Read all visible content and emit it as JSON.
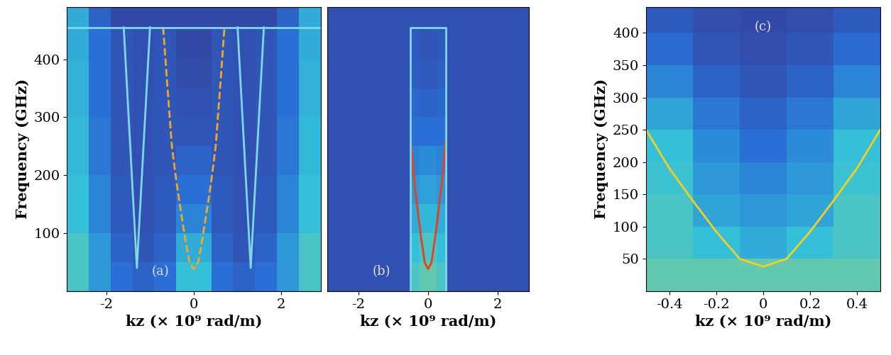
{
  "chart_data": [
    {
      "type": "heatmap",
      "xlabel": "kz (× 10⁹ rad/m)",
      "ylabel": "Frequency (GHz)",
      "annotations": [
        "(a)"
      ],
      "xlim": [
        -2.9,
        2.9
      ],
      "xticks": [
        -2,
        0,
        2
      ],
      "ylim": [
        0,
        490
      ],
      "yticks": [
        100,
        200,
        300,
        400
      ],
      "color_range": [
        0,
        1
      ],
      "x_edges": [
        -2.9,
        -2.4,
        -1.9,
        -1.4,
        -0.9,
        -0.4,
        0,
        0.4,
        0.9,
        1.4,
        1.9,
        2.4,
        2.9
      ],
      "y_edges": [
        0,
        50,
        100,
        150,
        200,
        250,
        300,
        350,
        400,
        455,
        490
      ],
      "cells": [
        [
          0.45,
          0.3,
          0.2,
          0.15,
          0.2,
          0.4,
          0.4,
          0.2,
          0.15,
          0.2,
          0.3,
          0.45
        ],
        [
          0.45,
          0.3,
          0.15,
          0.1,
          0.15,
          0.35,
          0.35,
          0.15,
          0.1,
          0.15,
          0.3,
          0.45
        ],
        [
          0.4,
          0.25,
          0.12,
          0.08,
          0.12,
          0.25,
          0.25,
          0.12,
          0.08,
          0.12,
          0.25,
          0.4
        ],
        [
          0.4,
          0.25,
          0.12,
          0.08,
          0.12,
          0.2,
          0.2,
          0.12,
          0.08,
          0.12,
          0.25,
          0.4
        ],
        [
          0.38,
          0.22,
          0.1,
          0.08,
          0.1,
          0.15,
          0.15,
          0.1,
          0.08,
          0.1,
          0.22,
          0.38
        ],
        [
          0.38,
          0.22,
          0.1,
          0.08,
          0.1,
          0.1,
          0.1,
          0.1,
          0.08,
          0.1,
          0.22,
          0.38
        ],
        [
          0.36,
          0.2,
          0.1,
          0.08,
          0.1,
          0.08,
          0.08,
          0.1,
          0.08,
          0.1,
          0.2,
          0.36
        ],
        [
          0.36,
          0.2,
          0.1,
          0.08,
          0.1,
          0.06,
          0.06,
          0.1,
          0.08,
          0.1,
          0.2,
          0.36
        ],
        [
          0.35,
          0.2,
          0.1,
          0.08,
          0.1,
          0.05,
          0.05,
          0.1,
          0.08,
          0.1,
          0.2,
          0.35
        ],
        [
          0.35,
          0.15,
          0.05,
          0.05,
          0.05,
          0.05,
          0.05,
          0.05,
          0.05,
          0.05,
          0.15,
          0.35
        ]
      ],
      "series": [
        {
          "x": [
            -0.7,
            -0.6,
            -0.5,
            -0.4,
            -0.3,
            -0.2,
            -0.1,
            0,
            0.1,
            0.2,
            0.3,
            0.4,
            0.5,
            0.6,
            0.7
          ],
          "values": [
            455,
            350,
            250,
            190,
            140,
            92,
            50,
            38,
            50,
            92,
            140,
            190,
            250,
            350,
            455
          ],
          "color": "#f5a623",
          "line_style": "dashed"
        },
        {
          "x": [
            -2.9,
            2.9
          ],
          "values": [
            455,
            455
          ],
          "color": "#7fd8e8",
          "line_style": "solid"
        },
        {
          "x": [
            1.0,
            1.3,
            1.6
          ],
          "values": [
            455,
            40,
            455
          ],
          "color": "#7fd8e8",
          "line_style": "solid"
        },
        {
          "x": [
            -1.0,
            -1.3,
            -1.6
          ],
          "values": [
            455,
            40,
            455
          ],
          "color": "#7fd8e8",
          "line_style": "solid"
        }
      ]
    },
    {
      "type": "heatmap",
      "xlabel": "kz (× 10⁹ rad/m)",
      "annotations": [
        "(b)"
      ],
      "tick_labels": "x",
      "xlim": [
        -2.9,
        2.9
      ],
      "xticks": [
        -2,
        0,
        2
      ],
      "ylim": [
        0,
        490
      ],
      "color_range": [
        0,
        1
      ],
      "x_edges": [
        -2.9,
        -0.5,
        -0.25,
        0,
        0.25,
        0.5,
        2.9
      ],
      "y_edges": [
        0,
        50,
        100,
        150,
        200,
        250,
        300,
        350,
        400,
        455,
        490
      ],
      "cells": [
        [
          0.08,
          0.45,
          0.5,
          0.5,
          0.45,
          0.08
        ],
        [
          0.08,
          0.4,
          0.45,
          0.45,
          0.4,
          0.08
        ],
        [
          0.08,
          0.35,
          0.38,
          0.38,
          0.35,
          0.08
        ],
        [
          0.08,
          0.3,
          0.32,
          0.32,
          0.3,
          0.08
        ],
        [
          0.08,
          0.25,
          0.27,
          0.27,
          0.25,
          0.08
        ],
        [
          0.08,
          0.2,
          0.2,
          0.2,
          0.2,
          0.08
        ],
        [
          0.08,
          0.17,
          0.15,
          0.15,
          0.17,
          0.08
        ],
        [
          0.08,
          0.14,
          0.12,
          0.12,
          0.14,
          0.08
        ],
        [
          0.08,
          0.12,
          0.1,
          0.1,
          0.12,
          0.08
        ],
        [
          0.08,
          0.08,
          0.08,
          0.08,
          0.08,
          0.08
        ]
      ],
      "series": [
        {
          "x": [
            -0.5,
            -0.4,
            -0.3,
            -0.2,
            -0.1,
            0,
            0.1,
            0.2,
            0.3,
            0.4,
            0.5
          ],
          "values": [
            260,
            190,
            140,
            92,
            50,
            38,
            50,
            92,
            140,
            190,
            260
          ],
          "color": "#e8401c",
          "line_style": "solid"
        },
        {
          "x": [
            -0.5,
            -0.5,
            0.5,
            0.5
          ],
          "values": [
            0,
            455,
            455,
            0
          ],
          "color": "#7fd8e8",
          "line_style": "solid"
        }
      ]
    },
    {
      "type": "heatmap",
      "xlabel": "kz (× 10⁹ rad/m)",
      "ylabel": "Frequency (GHz)",
      "annotations": [
        "(c)"
      ],
      "xlim": [
        -0.5,
        0.5
      ],
      "xticks": [
        -0.4,
        -0.2,
        0,
        0.2,
        0.4
      ],
      "ylim": [
        0,
        440
      ],
      "yticks": [
        50,
        100,
        150,
        200,
        250,
        300,
        350,
        400
      ],
      "color_range": [
        0,
        1
      ],
      "x_edges": [
        -0.5,
        -0.3,
        -0.1,
        0.1,
        0.3,
        0.5
      ],
      "y_edges": [
        0,
        50,
        100,
        150,
        200,
        250,
        300,
        350,
        400,
        440
      ],
      "cells": [
        [
          0.5,
          0.5,
          0.5,
          0.5,
          0.5
        ],
        [
          0.45,
          0.4,
          0.35,
          0.4,
          0.45
        ],
        [
          0.45,
          0.33,
          0.3,
          0.33,
          0.45
        ],
        [
          0.42,
          0.3,
          0.25,
          0.3,
          0.42
        ],
        [
          0.4,
          0.27,
          0.2,
          0.27,
          0.4
        ],
        [
          0.33,
          0.22,
          0.15,
          0.22,
          0.33
        ],
        [
          0.25,
          0.15,
          0.1,
          0.15,
          0.25
        ],
        [
          0.18,
          0.1,
          0.07,
          0.1,
          0.18
        ],
        [
          0.12,
          0.07,
          0.05,
          0.07,
          0.12
        ]
      ],
      "series": [
        {
          "x": [
            -0.5,
            -0.4,
            -0.3,
            -0.2,
            -0.1,
            0,
            0.1,
            0.2,
            0.3,
            0.4,
            0.5
          ],
          "values": [
            250,
            190,
            140,
            92,
            50,
            38,
            50,
            92,
            140,
            190,
            250
          ],
          "color": "#f5d020",
          "line_style": "solid"
        }
      ]
    }
  ]
}
